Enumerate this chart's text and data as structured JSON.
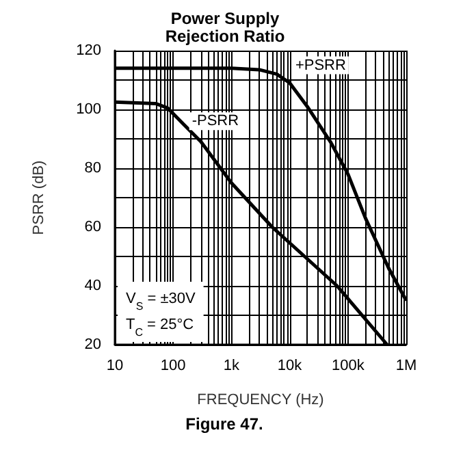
{
  "chart_data": {
    "type": "line",
    "title": "Power Supply\nRejection Ratio",
    "xlabel": "FREQUENCY (Hz)",
    "ylabel": "PSRR (dB)",
    "log": "x",
    "grid": true,
    "marker": "none",
    "line_style": "solid",
    "xlim": [
      10,
      1000000
    ],
    "xticks": [
      10,
      {
        "value": 20,
        "label": null
      },
      {
        "value": 30,
        "label": null
      },
      {
        "value": 40,
        "label": null
      },
      {
        "value": 50,
        "label": null
      },
      {
        "value": 60,
        "label": null
      },
      {
        "value": 70,
        "label": null
      },
      {
        "value": 80,
        "label": null
      },
      {
        "value": 90,
        "label": null
      },
      100,
      {
        "value": 200,
        "label": null
      },
      {
        "value": 300,
        "label": null
      },
      {
        "value": 400,
        "label": null
      },
      {
        "value": 500,
        "label": null
      },
      {
        "value": 600,
        "label": null
      },
      {
        "value": 700,
        "label": null
      },
      {
        "value": 800,
        "label": null
      },
      {
        "value": 900,
        "label": null
      },
      {
        "value": 1000,
        "label": "1k"
      },
      {
        "value": 2000,
        "label": null
      },
      {
        "value": 3000,
        "label": null
      },
      {
        "value": 4000,
        "label": null
      },
      {
        "value": 5000,
        "label": null
      },
      {
        "value": 6000,
        "label": null
      },
      {
        "value": 7000,
        "label": null
      },
      {
        "value": 8000,
        "label": null
      },
      {
        "value": 9000,
        "label": null
      },
      {
        "value": 10000,
        "label": "10k"
      },
      {
        "value": 20000,
        "label": null
      },
      {
        "value": 30000,
        "label": null
      },
      {
        "value": 40000,
        "label": null
      },
      {
        "value": 50000,
        "label": null
      },
      {
        "value": 60000,
        "label": null
      },
      {
        "value": 70000,
        "label": null
      },
      {
        "value": 80000,
        "label": null
      },
      {
        "value": 90000,
        "label": null
      },
      {
        "value": 100000,
        "label": "100k"
      },
      {
        "value": 200000,
        "label": null
      },
      {
        "value": 300000,
        "label": null
      },
      {
        "value": 400000,
        "label": null
      },
      {
        "value": 500000,
        "label": null
      },
      {
        "value": 600000,
        "label": null
      },
      {
        "value": 700000,
        "label": null
      },
      {
        "value": 800000,
        "label": null
      },
      {
        "value": 900000,
        "label": null
      },
      {
        "value": 1000000,
        "label": "1M"
      }
    ],
    "ylim": [
      20,
      120
    ],
    "yticks": [
      20,
      {
        "value": 30,
        "label": null
      },
      40,
      {
        "value": 50,
        "label": null
      },
      60,
      {
        "value": 70,
        "label": null
      },
      80,
      {
        "value": 90,
        "label": null
      },
      100,
      {
        "value": 110,
        "label": null
      },
      120
    ],
    "series": [
      {
        "color": "#000000",
        "x": [
          10,
          1000,
          3000,
          6000,
          10000,
          20000,
          50000,
          100000,
          200000,
          500000,
          1000000
        ],
        "values": [
          114,
          114,
          113.5,
          112,
          109,
          101,
          89,
          78,
          63,
          46,
          35
        ]
      },
      {
        "color": "#000000",
        "x": [
          10,
          50,
          80,
          150,
          300,
          1000,
          5000,
          65000,
          470000
        ],
        "values": [
          102.5,
          102,
          100.5,
          95,
          89,
          75,
          60,
          40,
          20
        ]
      }
    ],
    "annotations": [
      {
        "text": "+PSRR",
        "x": 34000,
        "y": 115
      },
      {
        "text": "-PSRR",
        "x": 530,
        "y": 96
      },
      "V$_{S}$ = ±30V",
      "T$_{C}$ = 25°C",
      "Figure 47."
    ]
  }
}
